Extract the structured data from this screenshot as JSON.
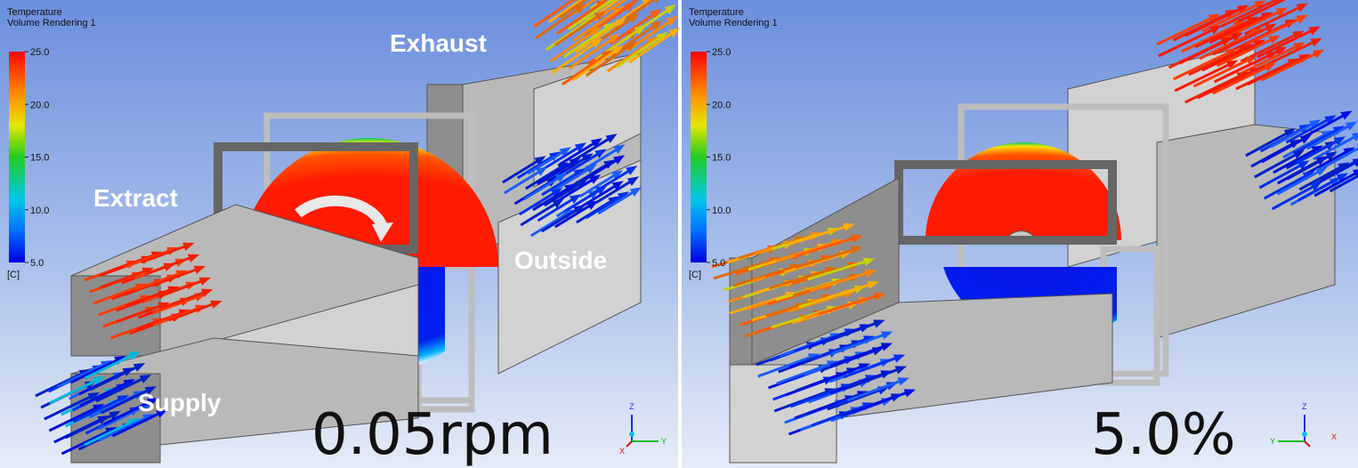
{
  "panels": [
    {
      "legend": {
        "title": "Temperature",
        "subtitle": "Volume Rendering 1",
        "ticks": [
          {
            "value": 25,
            "label": "25.0"
          },
          {
            "value": 20,
            "label": "20.0"
          },
          {
            "value": 15,
            "label": "15.0"
          },
          {
            "value": 10,
            "label": "10.0"
          },
          {
            "value": 5,
            "label": "5.0"
          }
        ],
        "unit": "[C]"
      },
      "labels": {
        "exhaust": "Exhaust",
        "extract": "Extract",
        "outside": "Outside",
        "supply": "Supply"
      },
      "caption": "0.05rpm",
      "triad": {
        "z": "Z",
        "y": "Y",
        "x": "X"
      }
    },
    {
      "legend": {
        "title": "Temperature",
        "subtitle": "Volume Rendering 1",
        "ticks": [
          {
            "value": 25,
            "label": "25.0"
          },
          {
            "value": 20,
            "label": "20.0"
          },
          {
            "value": 15,
            "label": "15.0"
          },
          {
            "value": 10,
            "label": "10.0"
          },
          {
            "value": 5,
            "label": "5.0"
          }
        ],
        "unit": "[C]"
      },
      "caption": "5.0%",
      "triad": {
        "z": "Z",
        "y": "Y",
        "x": "X"
      }
    }
  ]
}
